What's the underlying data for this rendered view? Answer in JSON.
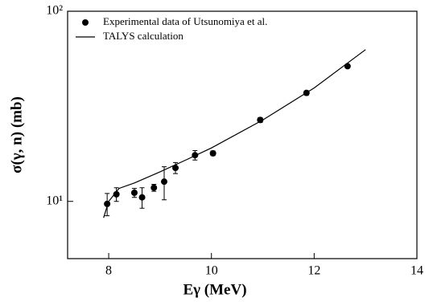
{
  "chart_data": {
    "type": "scatter",
    "xlabel": "Eγ (MeV)",
    "ylabel": "σ(γ, n) (mb)",
    "xlim": [
      7.2,
      14
    ],
    "xticks": [
      8,
      10,
      12,
      14
    ],
    "ylim": [
      5,
      100
    ],
    "ylog": true,
    "yticks": [
      {
        "value": 10,
        "label": "10¹"
      },
      {
        "value": 100,
        "label": "10²"
      }
    ],
    "legend": "upper left",
    "series": [
      {
        "name": "Experimental data of Utsunomiya et al.",
        "kind": "points",
        "color": "#000000",
        "x": [
          7.97,
          8.15,
          8.5,
          8.65,
          8.88,
          9.08,
          9.3,
          9.68,
          10.03,
          10.95,
          11.85,
          12.65
        ],
        "values": [
          9.7,
          10.9,
          11.1,
          10.5,
          11.8,
          12.7,
          15.0,
          17.5,
          17.9,
          26.8,
          37.2,
          51.4
        ],
        "errors": [
          1.3,
          0.9,
          0.6,
          1.3,
          0.5,
          2.5,
          1.0,
          1.0,
          0.5,
          0.8,
          1.0,
          1.0
        ]
      },
      {
        "name": "TALYS calculation",
        "kind": "line",
        "color": "#000000",
        "x": [
          7.9,
          8.0,
          8.2,
          8.5,
          9.0,
          9.5,
          10.0,
          11.0,
          12.0,
          13.0
        ],
        "values": [
          8.2,
          10.0,
          11.7,
          12.5,
          14.3,
          16.5,
          19.1,
          26.8,
          39.5,
          62.8
        ]
      }
    ]
  }
}
